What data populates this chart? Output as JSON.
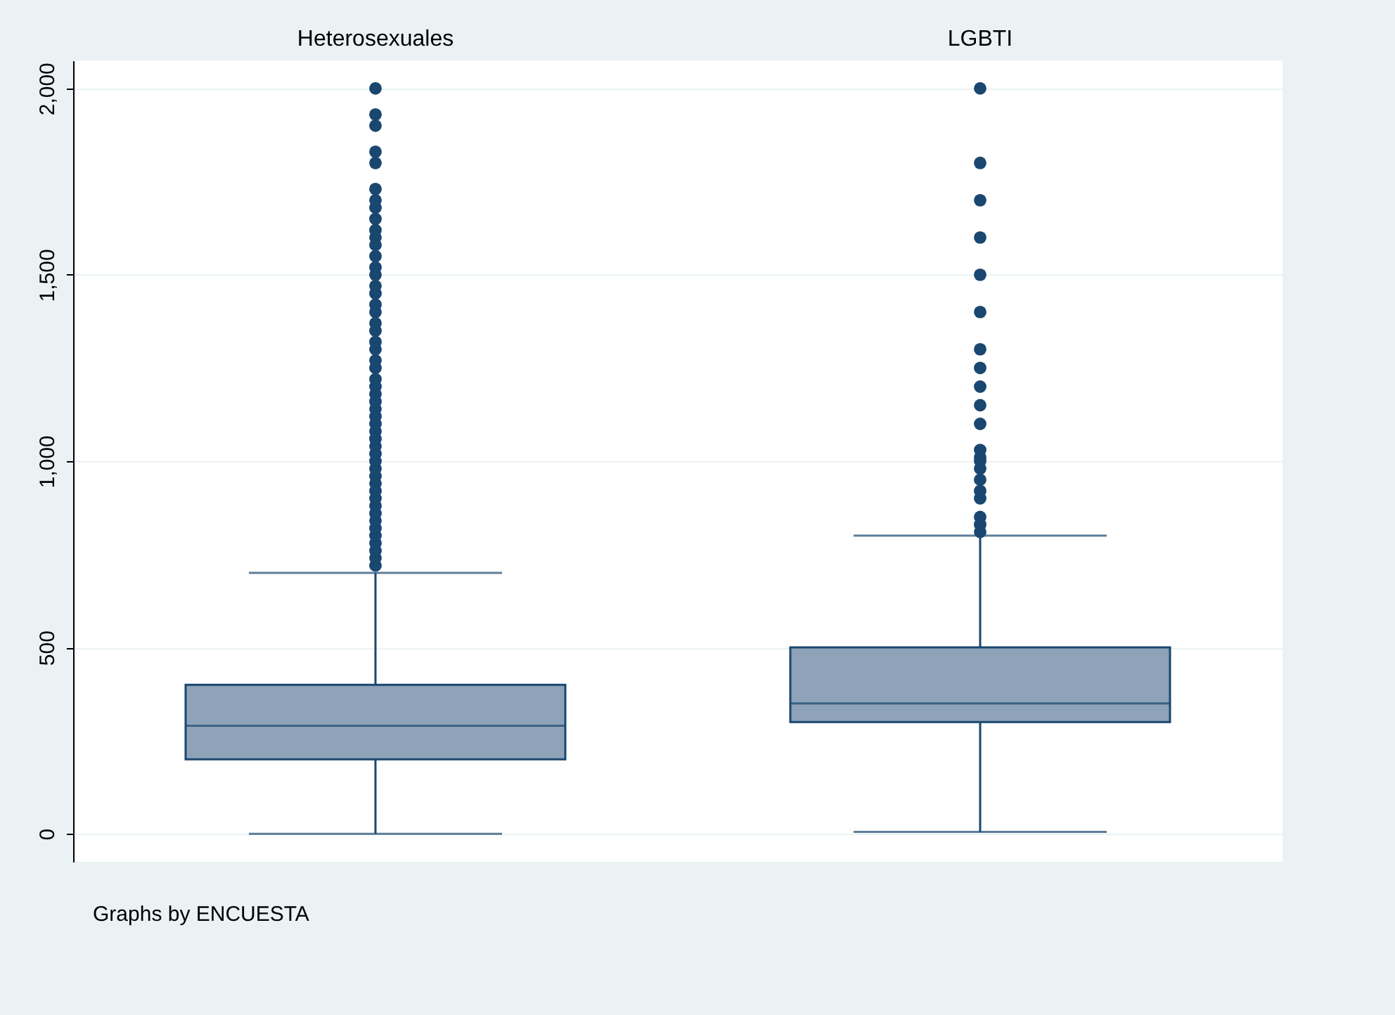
{
  "chart_data": {
    "type": "box",
    "categories": [
      "Heterosexuales",
      "LGBTI"
    ],
    "ylim": [
      -75,
      2075
    ],
    "yticks": [
      0,
      500,
      {
        "value": 1000,
        "label": "1,000"
      },
      {
        "value": 1500,
        "label": "1,500"
      },
      {
        "value": 2000,
        "label": "2,000"
      }
    ],
    "grid": "y",
    "boxes": [
      {
        "low": 0,
        "q1": 200,
        "median": 290,
        "q3": 400,
        "high": 700,
        "outliers": [
          720,
          740,
          760,
          780,
          800,
          820,
          840,
          860,
          880,
          900,
          920,
          940,
          960,
          980,
          1000,
          1020,
          1040,
          1060,
          1080,
          1100,
          1120,
          1140,
          1160,
          1180,
          1200,
          1220,
          1250,
          1270,
          1300,
          1320,
          1350,
          1370,
          1400,
          1420,
          1450,
          1470,
          1500,
          1520,
          1550,
          1580,
          1600,
          1620,
          1650,
          1680,
          1700,
          1730,
          1800,
          1830,
          1900,
          1930,
          2000
        ]
      },
      {
        "low": 5,
        "q1": 300,
        "median": 350,
        "q3": 500,
        "high": 800,
        "outliers": [
          810,
          830,
          850,
          900,
          920,
          950,
          980,
          1000,
          1010,
          1030,
          1100,
          1150,
          1200,
          1250,
          1300,
          1400,
          1500,
          1600,
          1700,
          1800,
          2000
        ]
      }
    ],
    "annotations": [
      "Graphs by ENCUESTA"
    ]
  }
}
